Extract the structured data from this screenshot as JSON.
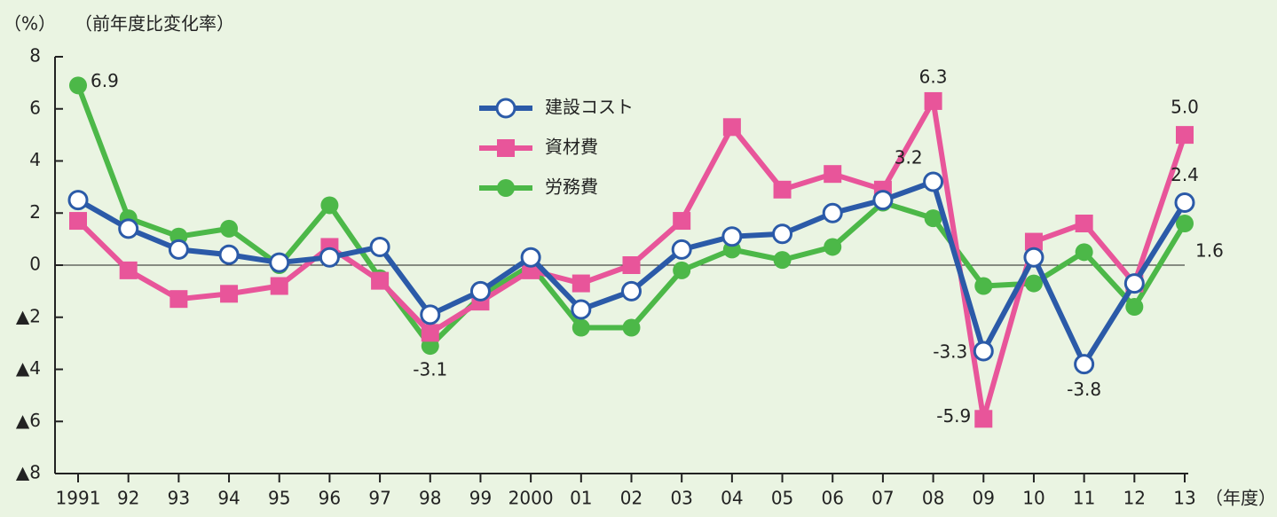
{
  "chart_data": {
    "type": "line",
    "ylabel": "（%）",
    "subtitle": "（前年度比変化率）",
    "xlabel": "（年度）",
    "categories": [
      "1991",
      "92",
      "93",
      "94",
      "95",
      "96",
      "97",
      "98",
      "99",
      "2000",
      "01",
      "02",
      "03",
      "04",
      "05",
      "06",
      "07",
      "08",
      "09",
      "10",
      "11",
      "12",
      "13"
    ],
    "ylim": [
      -8,
      8
    ],
    "yticks": [
      {
        "value": -8,
        "label": "▲8"
      },
      {
        "value": -6,
        "label": "▲6"
      },
      {
        "value": -4,
        "label": "▲4"
      },
      {
        "value": -2,
        "label": "▲2"
      },
      0,
      2,
      4,
      6,
      8
    ],
    "series": [
      {
        "name": "労務費",
        "color": "#4cb848",
        "marker": "circle",
        "values": [
          6.9,
          1.8,
          1.1,
          1.4,
          0.0,
          2.3,
          -0.5,
          -3.1,
          -1.2,
          0.0,
          -2.4,
          -2.4,
          -0.2,
          0.6,
          0.2,
          0.7,
          2.4,
          1.8,
          -0.8,
          -0.7,
          0.5,
          -1.6,
          1.6
        ],
        "value_labels": [
          "6.9",
          null,
          null,
          null,
          null,
          null,
          null,
          "-3.1",
          null,
          null,
          null,
          null,
          null,
          null,
          null,
          null,
          null,
          null,
          null,
          null,
          null,
          null,
          "1.6"
        ]
      },
      {
        "name": "資材費",
        "color": "#e8559a",
        "marker": "square",
        "values": [
          1.7,
          -0.2,
          -1.3,
          -1.1,
          -0.8,
          0.7,
          -0.6,
          -2.6,
          -1.4,
          -0.2,
          -0.7,
          0.0,
          1.7,
          5.3,
          2.9,
          3.5,
          2.9,
          6.3,
          -5.9,
          0.9,
          1.6,
          -0.7,
          5.0
        ],
        "value_labels": [
          null,
          null,
          null,
          null,
          null,
          null,
          null,
          null,
          null,
          null,
          null,
          null,
          null,
          null,
          null,
          null,
          null,
          "6.3",
          "-5.9",
          null,
          null,
          null,
          "5.0"
        ]
      },
      {
        "name": "建設コスト",
        "color": "#2b5aa8",
        "marker": "open-circle",
        "values": [
          2.5,
          1.4,
          0.6,
          0.4,
          0.1,
          0.3,
          0.7,
          -1.9,
          -1.0,
          0.3,
          -1.7,
          -1.0,
          0.6,
          1.1,
          1.2,
          2.0,
          2.5,
          3.2,
          -3.3,
          0.3,
          -3.8,
          -0.7,
          2.4
        ],
        "value_labels": [
          null,
          null,
          null,
          null,
          null,
          null,
          null,
          null,
          null,
          null,
          null,
          null,
          null,
          null,
          null,
          null,
          null,
          "3.2",
          "-3.3",
          null,
          "-3.8",
          null,
          "2.4"
        ]
      }
    ]
  }
}
